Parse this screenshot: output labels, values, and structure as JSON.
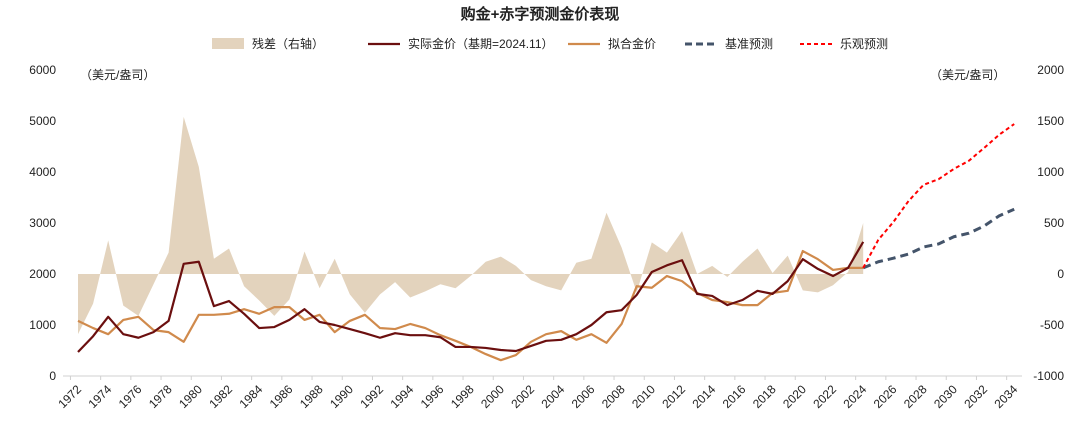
{
  "chart_data": {
    "type": "line",
    "title": "购金+赤字预测金价表现",
    "left_unit": "（美元/盎司）",
    "right_unit": "（美元/盎司）",
    "ylim_left": [
      0,
      6000
    ],
    "ylim_right": [
      -1000,
      2000
    ],
    "yticks_left": [
      0,
      1000,
      2000,
      3000,
      4000,
      5000,
      6000
    ],
    "yticks_right": [
      -1000,
      -500,
      0,
      500,
      1000,
      1500,
      2000
    ],
    "x_start": 1972,
    "x_end": 2034,
    "xtick_step": 2,
    "legend": [
      "残差（右轴）",
      "实际金价（基期=2024.11）",
      "拟合金价",
      "基准预测",
      "乐观预测"
    ],
    "colors": {
      "residual": "#e3d3bd",
      "actual": "#6b0f0f",
      "fitted": "#d08a4c",
      "baseline": "#44546a",
      "optimistic": "#ff0000"
    },
    "series": {
      "actual": {
        "start": 1972,
        "values": [
          470,
          780,
          1160,
          820,
          750,
          860,
          1080,
          2200,
          2240,
          1370,
          1470,
          1220,
          940,
          960,
          1100,
          1310,
          1060,
          1000,
          920,
          840,
          750,
          840,
          800,
          800,
          760,
          570,
          570,
          550,
          510,
          490,
          590,
          690,
          710,
          820,
          1000,
          1250,
          1290,
          1590,
          2040,
          2170,
          2270,
          1610,
          1570,
          1390,
          1490,
          1670,
          1610,
          1860,
          2290,
          2100,
          1960,
          2120,
          2630
        ]
      },
      "fitted": {
        "start": 1972,
        "values": [
          1080,
          940,
          820,
          1100,
          1160,
          900,
          860,
          670,
          1200,
          1200,
          1220,
          1310,
          1220,
          1350,
          1350,
          1100,
          1200,
          860,
          1080,
          1200,
          940,
          920,
          1020,
          940,
          800,
          690,
          570,
          430,
          310,
          410,
          670,
          820,
          880,
          710,
          820,
          650,
          1020,
          1760,
          1730,
          1960,
          1860,
          1630,
          1490,
          1450,
          1390,
          1390,
          1630,
          1670,
          2450,
          2290,
          2080,
          2120,
          2120
        ]
      },
      "residual": {
        "start": 1972,
        "values": [
          -590,
          -290,
          330,
          -310,
          -410,
          -100,
          210,
          1540,
          1050,
          150,
          250,
          -120,
          -260,
          -410,
          -250,
          220,
          -140,
          150,
          -200,
          -380,
          -200,
          -80,
          -230,
          -170,
          -100,
          -140,
          -20,
          120,
          170,
          80,
          -60,
          -120,
          -160,
          110,
          150,
          600,
          260,
          -180,
          310,
          210,
          420,
          0,
          80,
          -30,
          120,
          250,
          10,
          180,
          -160,
          -180,
          -110,
          20,
          500
        ]
      },
      "baseline": {
        "start": 2024,
        "values": [
          2120,
          2240,
          2310,
          2390,
          2530,
          2590,
          2730,
          2800,
          2940,
          3140,
          3270
        ]
      },
      "optimistic": {
        "start": 2024,
        "values": [
          2120,
          2670,
          3020,
          3430,
          3750,
          3860,
          4060,
          4220,
          4470,
          4730,
          4940
        ]
      }
    }
  }
}
